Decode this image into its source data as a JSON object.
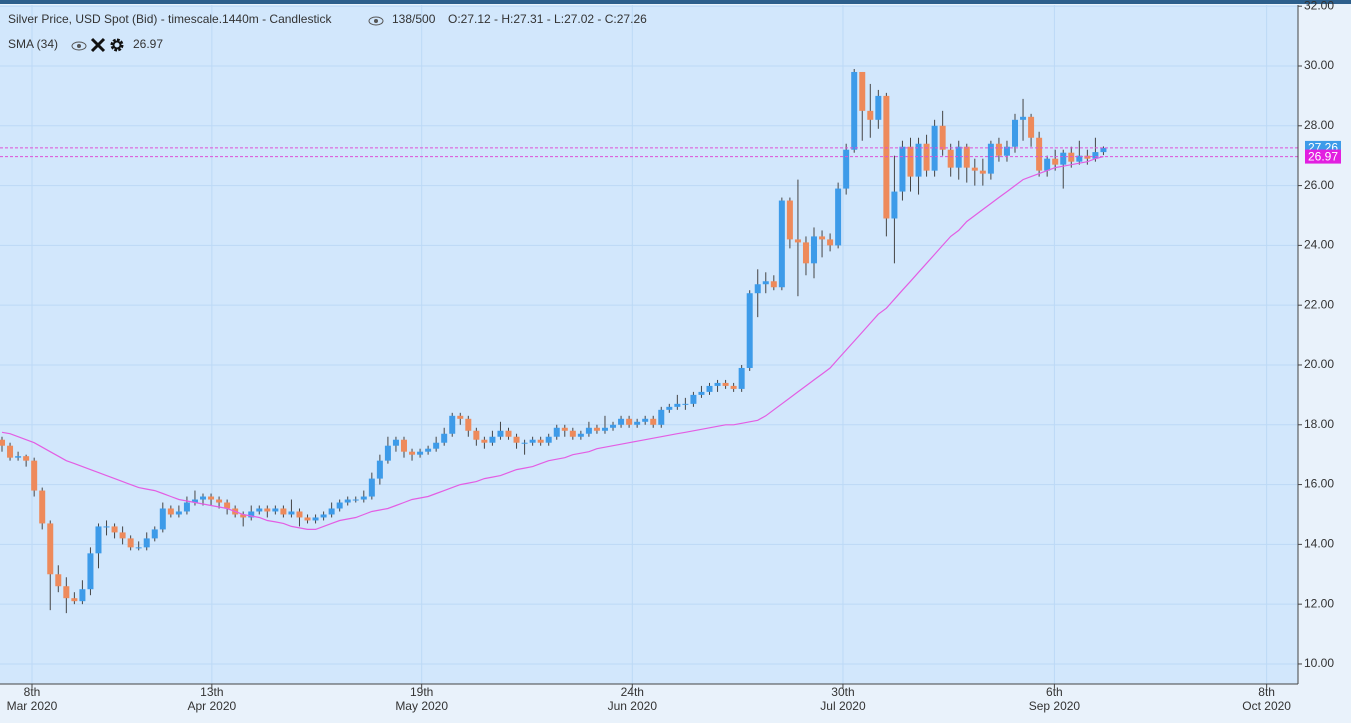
{
  "chart_data": {
    "type": "candlestick",
    "title": "Silver Price, USD Spot (Bid) - timescale.1440m - Candlestick",
    "counter": "138/500",
    "ohlc_label": "O:27.12 - H:27.31 - L:27.02 - C:27.26",
    "indicator": {
      "name": "SMA (34)",
      "value": 26.97,
      "color": "#e35ee3"
    },
    "up_color": "#3d9be9",
    "down_color": "#ee8a5b",
    "wick_color": "#444444",
    "grid": true,
    "xlim": [
      -0.25,
      161.2
    ],
    "ylim": [
      9.33,
      32.04
    ],
    "xticks": [
      {
        "value": 3.73,
        "label": [
          "8th",
          "Mar 2020"
        ]
      },
      {
        "value": 26.1,
        "label": [
          "13th",
          "Apr 2020"
        ]
      },
      {
        "value": 52.2,
        "label": [
          "19th",
          "May 2020"
        ]
      },
      {
        "value": 78.4,
        "label": [
          "24th",
          "Jun 2020"
        ]
      },
      {
        "value": 104.6,
        "label": [
          "30th",
          "Jul 2020"
        ]
      },
      {
        "value": 130.9,
        "label": [
          "6th",
          "Sep 2020"
        ]
      },
      {
        "value": 157.3,
        "label": [
          "8th",
          "Oct 2020"
        ]
      }
    ],
    "yticks": [
      {
        "value": 10,
        "label": "10.00"
      },
      {
        "value": 12,
        "label": "12.00"
      },
      {
        "value": 14,
        "label": "14.00"
      },
      {
        "value": 16,
        "label": "16.00"
      },
      {
        "value": 18,
        "label": "18.00"
      },
      {
        "value": 20,
        "label": "20.00"
      },
      {
        "value": 22,
        "label": "22.00"
      },
      {
        "value": 24,
        "label": "24.00"
      },
      {
        "value": 26,
        "label": "26.00"
      },
      {
        "value": 28,
        "label": "28.00"
      },
      {
        "value": 30,
        "label": "30.00"
      },
      {
        "value": 32,
        "label": "32.00"
      }
    ],
    "candles": [
      [
        17.5,
        17.6,
        17.1,
        17.3
      ],
      [
        17.3,
        17.4,
        16.8,
        16.9
      ],
      [
        16.9,
        17.1,
        16.8,
        16.95
      ],
      [
        16.95,
        17.0,
        16.6,
        16.8
      ],
      [
        16.8,
        16.9,
        15.6,
        15.8
      ],
      [
        15.8,
        15.9,
        14.5,
        14.7
      ],
      [
        14.7,
        14.8,
        11.8,
        13.0
      ],
      [
        13.0,
        13.3,
        12.4,
        12.6
      ],
      [
        12.6,
        12.9,
        11.7,
        12.2
      ],
      [
        12.2,
        12.4,
        12.0,
        12.1
      ],
      [
        12.1,
        12.8,
        12.0,
        12.5
      ],
      [
        12.5,
        13.9,
        12.3,
        13.7
      ],
      [
        13.7,
        14.7,
        13.2,
        14.6
      ],
      [
        14.6,
        14.8,
        14.3,
        14.6
      ],
      [
        14.6,
        14.7,
        14.2,
        14.4
      ],
      [
        14.4,
        14.6,
        14.0,
        14.2
      ],
      [
        14.2,
        14.3,
        13.8,
        13.9
      ],
      [
        13.9,
        14.1,
        13.8,
        13.9
      ],
      [
        13.9,
        14.4,
        13.8,
        14.2
      ],
      [
        14.2,
        14.6,
        14.1,
        14.5
      ],
      [
        14.5,
        15.4,
        14.4,
        15.2
      ],
      [
        15.2,
        15.3,
        14.9,
        15.0
      ],
      [
        15.0,
        15.3,
        14.9,
        15.1
      ],
      [
        15.1,
        15.6,
        15.0,
        15.4
      ],
      [
        15.4,
        15.8,
        15.3,
        15.5
      ],
      [
        15.5,
        15.7,
        15.3,
        15.6
      ],
      [
        15.6,
        15.7,
        15.3,
        15.5
      ],
      [
        15.5,
        15.6,
        15.2,
        15.4
      ],
      [
        15.4,
        15.5,
        15.0,
        15.2
      ],
      [
        15.2,
        15.3,
        14.9,
        15.0
      ],
      [
        15.0,
        15.1,
        14.6,
        14.9
      ],
      [
        14.9,
        15.3,
        14.8,
        15.1
      ],
      [
        15.1,
        15.3,
        15.0,
        15.2
      ],
      [
        15.2,
        15.3,
        14.9,
        15.1
      ],
      [
        15.1,
        15.3,
        15.0,
        15.2
      ],
      [
        15.2,
        15.3,
        14.9,
        15.0
      ],
      [
        15.0,
        15.5,
        14.9,
        15.1
      ],
      [
        15.1,
        15.2,
        14.6,
        14.9
      ],
      [
        14.9,
        15.0,
        14.7,
        14.8
      ],
      [
        14.8,
        15.0,
        14.7,
        14.9
      ],
      [
        14.9,
        15.1,
        14.8,
        15.0
      ],
      [
        15.0,
        15.4,
        14.9,
        15.2
      ],
      [
        15.2,
        15.5,
        15.1,
        15.4
      ],
      [
        15.4,
        15.6,
        15.3,
        15.5
      ],
      [
        15.5,
        15.6,
        15.4,
        15.5
      ],
      [
        15.5,
        15.8,
        15.4,
        15.6
      ],
      [
        15.6,
        16.4,
        15.5,
        16.2
      ],
      [
        16.2,
        17.0,
        16.0,
        16.8
      ],
      [
        16.8,
        17.6,
        16.7,
        17.3
      ],
      [
        17.3,
        17.6,
        17.1,
        17.5
      ],
      [
        17.5,
        17.6,
        16.9,
        17.1
      ],
      [
        17.1,
        17.2,
        16.8,
        17.0
      ],
      [
        17.0,
        17.2,
        16.9,
        17.1
      ],
      [
        17.1,
        17.3,
        17.0,
        17.2
      ],
      [
        17.2,
        17.6,
        17.1,
        17.4
      ],
      [
        17.4,
        17.9,
        17.3,
        17.7
      ],
      [
        17.7,
        18.4,
        17.6,
        18.3
      ],
      [
        18.3,
        18.4,
        18.0,
        18.2
      ],
      [
        18.2,
        18.3,
        17.6,
        17.8
      ],
      [
        17.8,
        17.9,
        17.3,
        17.5
      ],
      [
        17.5,
        17.6,
        17.2,
        17.4
      ],
      [
        17.4,
        17.8,
        17.3,
        17.6
      ],
      [
        17.6,
        18.1,
        17.5,
        17.8
      ],
      [
        17.8,
        17.9,
        17.5,
        17.6
      ],
      [
        17.6,
        17.7,
        17.2,
        17.4
      ],
      [
        17.4,
        17.5,
        17.0,
        17.4
      ],
      [
        17.4,
        17.6,
        17.3,
        17.5
      ],
      [
        17.5,
        17.6,
        17.3,
        17.4
      ],
      [
        17.4,
        17.7,
        17.3,
        17.6
      ],
      [
        17.6,
        18.0,
        17.5,
        17.9
      ],
      [
        17.9,
        18.0,
        17.6,
        17.8
      ],
      [
        17.8,
        17.9,
        17.5,
        17.6
      ],
      [
        17.6,
        17.8,
        17.5,
        17.7
      ],
      [
        17.7,
        18.1,
        17.6,
        17.9
      ],
      [
        17.9,
        18.0,
        17.7,
        17.8
      ],
      [
        17.8,
        18.3,
        17.7,
        17.9
      ],
      [
        17.9,
        18.1,
        17.8,
        18.0
      ],
      [
        18.0,
        18.3,
        17.9,
        18.2
      ],
      [
        18.2,
        18.3,
        17.9,
        18.0
      ],
      [
        18.0,
        18.2,
        17.9,
        18.1
      ],
      [
        18.1,
        18.3,
        18.0,
        18.2
      ],
      [
        18.2,
        18.3,
        17.9,
        18.0
      ],
      [
        18.0,
        18.6,
        17.9,
        18.5
      ],
      [
        18.5,
        18.7,
        18.4,
        18.6
      ],
      [
        18.6,
        19.0,
        18.5,
        18.7
      ],
      [
        18.7,
        18.9,
        18.5,
        18.7
      ],
      [
        18.7,
        19.1,
        18.6,
        19.0
      ],
      [
        19.0,
        19.3,
        18.9,
        19.1
      ],
      [
        19.1,
        19.4,
        19.0,
        19.3
      ],
      [
        19.3,
        19.5,
        19.1,
        19.4
      ],
      [
        19.4,
        19.5,
        19.2,
        19.3
      ],
      [
        19.3,
        19.4,
        19.1,
        19.2
      ],
      [
        19.2,
        20.0,
        19.1,
        19.9
      ],
      [
        19.9,
        22.5,
        19.8,
        22.4
      ],
      [
        22.4,
        23.2,
        21.6,
        22.7
      ],
      [
        22.7,
        23.1,
        22.4,
        22.8
      ],
      [
        22.8,
        23.0,
        22.5,
        22.6
      ],
      [
        22.6,
        25.6,
        22.5,
        25.5
      ],
      [
        25.5,
        25.6,
        23.9,
        24.2
      ],
      [
        24.2,
        26.2,
        22.3,
        24.1
      ],
      [
        24.1,
        24.3,
        23.0,
        23.4
      ],
      [
        23.4,
        24.6,
        22.9,
        24.3
      ],
      [
        24.3,
        24.5,
        23.6,
        24.2
      ],
      [
        24.2,
        24.4,
        23.8,
        24.0
      ],
      [
        24.0,
        26.1,
        23.9,
        25.9
      ],
      [
        25.9,
        27.4,
        25.7,
        27.2
      ],
      [
        27.2,
        29.9,
        27.1,
        29.8
      ],
      [
        29.8,
        29.8,
        27.5,
        28.5
      ],
      [
        28.5,
        29.4,
        27.6,
        28.2
      ],
      [
        28.2,
        29.2,
        27.9,
        29.0
      ],
      [
        29.0,
        29.1,
        24.3,
        24.9
      ],
      [
        24.9,
        27.0,
        23.4,
        25.8
      ],
      [
        25.8,
        27.5,
        25.5,
        27.3
      ],
      [
        27.3,
        27.6,
        25.8,
        26.3
      ],
      [
        26.3,
        27.6,
        25.7,
        27.4
      ],
      [
        27.4,
        27.7,
        26.3,
        26.5
      ],
      [
        26.5,
        28.2,
        26.3,
        28.0
      ],
      [
        28.0,
        28.5,
        27.0,
        27.2
      ],
      [
        27.2,
        27.4,
        26.3,
        26.6
      ],
      [
        26.6,
        27.5,
        26.2,
        27.3
      ],
      [
        27.3,
        27.4,
        26.1,
        26.6
      ],
      [
        26.6,
        26.9,
        26.0,
        26.5
      ],
      [
        26.5,
        26.9,
        26.0,
        26.4
      ],
      [
        26.4,
        27.5,
        26.2,
        27.4
      ],
      [
        27.4,
        27.6,
        26.8,
        27.0
      ],
      [
        27.0,
        27.5,
        26.8,
        27.3
      ],
      [
        27.3,
        28.4,
        27.1,
        28.2
      ],
      [
        28.2,
        28.9,
        27.5,
        28.3
      ],
      [
        28.3,
        28.4,
        27.3,
        27.6
      ],
      [
        27.6,
        27.8,
        26.3,
        26.5
      ],
      [
        26.5,
        27.0,
        26.3,
        26.9
      ],
      [
        26.9,
        27.2,
        26.5,
        26.7
      ],
      [
        26.7,
        27.2,
        25.9,
        27.1
      ],
      [
        27.1,
        27.3,
        26.6,
        26.8
      ],
      [
        26.8,
        27.5,
        26.7,
        27.0
      ],
      [
        27.0,
        27.2,
        26.7,
        26.9
      ],
      [
        26.9,
        27.6,
        26.8,
        27.12
      ],
      [
        27.12,
        27.31,
        27.02,
        27.26
      ]
    ],
    "sma": [
      17.75,
      17.7,
      17.6,
      17.5,
      17.4,
      17.25,
      17.1,
      16.95,
      16.8,
      16.7,
      16.6,
      16.5,
      16.4,
      16.3,
      16.2,
      16.1,
      16.0,
      15.9,
      15.85,
      15.8,
      15.7,
      15.6,
      15.5,
      15.45,
      15.4,
      15.35,
      15.3,
      15.25,
      15.2,
      15.1,
      15.0,
      14.95,
      14.9,
      14.8,
      14.75,
      14.7,
      14.6,
      14.55,
      14.5,
      14.5,
      14.6,
      14.7,
      14.8,
      14.85,
      14.9,
      15.0,
      15.1,
      15.15,
      15.2,
      15.3,
      15.4,
      15.5,
      15.55,
      15.6,
      15.7,
      15.8,
      15.9,
      16.0,
      16.05,
      16.1,
      16.2,
      16.25,
      16.3,
      16.4,
      16.5,
      16.55,
      16.6,
      16.7,
      16.8,
      16.85,
      16.9,
      17.0,
      17.05,
      17.1,
      17.2,
      17.25,
      17.3,
      17.35,
      17.4,
      17.45,
      17.5,
      17.55,
      17.6,
      17.65,
      17.7,
      17.75,
      17.8,
      17.85,
      17.9,
      17.95,
      18.0,
      18.0,
      18.05,
      18.1,
      18.15,
      18.3,
      18.5,
      18.7,
      18.9,
      19.1,
      19.3,
      19.5,
      19.7,
      19.9,
      20.2,
      20.5,
      20.8,
      21.1,
      21.4,
      21.7,
      21.9,
      22.2,
      22.5,
      22.8,
      23.1,
      23.4,
      23.7,
      24.0,
      24.3,
      24.5,
      24.8,
      25.0,
      25.2,
      25.4,
      25.6,
      25.8,
      26.0,
      26.2,
      26.3,
      26.4,
      26.5,
      26.6,
      26.65,
      26.7,
      26.75,
      26.8,
      26.9,
      26.97
    ]
  }
}
